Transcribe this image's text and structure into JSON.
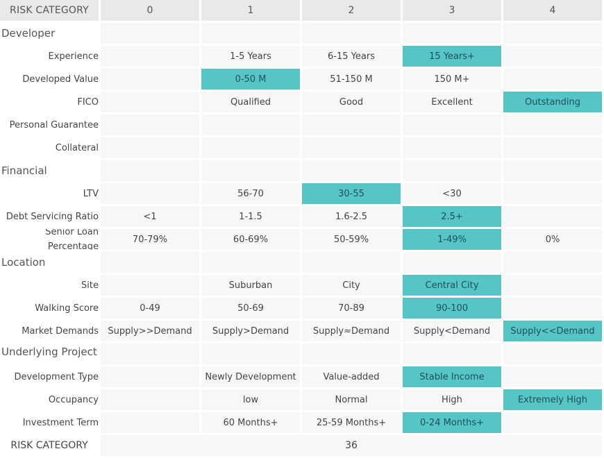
{
  "header": {
    "title": "RISK CATEGORY",
    "levels": [
      "0",
      "1",
      "2",
      "3",
      "4"
    ]
  },
  "sections": [
    {
      "title": "Developer",
      "rows": [
        {
          "label": "Experience",
          "cells": [
            "",
            "1-5 Years",
            "6-15 Years",
            "15 Years+",
            ""
          ],
          "selected": 3
        },
        {
          "label": "Developed Value",
          "cells": [
            "",
            "0-50 M",
            "51-150 M",
            "150 M+",
            ""
          ],
          "selected": 1
        },
        {
          "label": "FICO",
          "cells": [
            "",
            "Qualified",
            "Good",
            "Excellent",
            "Outstanding"
          ],
          "selected": 4
        },
        {
          "label": "Personal Guarantee",
          "cells": [
            "",
            "",
            "",
            "",
            ""
          ],
          "selected": null
        },
        {
          "label": "Collateral",
          "cells": [
            "",
            "",
            "",
            "",
            ""
          ],
          "selected": null
        }
      ]
    },
    {
      "title": "Financial",
      "rows": [
        {
          "label": "LTV",
          "cells": [
            "",
            "56-70",
            "30-55",
            "<30",
            ""
          ],
          "selected": 2
        },
        {
          "label": "Debt Servicing Ratio",
          "cells": [
            "<1",
            "1-1.5",
            "1.6-2.5",
            "2.5+",
            ""
          ],
          "selected": 3
        },
        {
          "label": "Senior Loan Percentage",
          "cells": [
            "70-79%",
            "60-69%",
            "50-59%",
            "1-49%",
            "0%"
          ],
          "selected": 3
        }
      ]
    },
    {
      "title": "Location",
      "rows": [
        {
          "label": "Site",
          "cells": [
            "",
            "Suburban",
            "City",
            "Central City",
            ""
          ],
          "selected": 3
        },
        {
          "label": "Walking Score",
          "cells": [
            "0-49",
            "50-69",
            "70-89",
            "90-100",
            ""
          ],
          "selected": 3
        },
        {
          "label": "Market Demands",
          "cells": [
            "Supply>>Demand",
            "Supply>Demand",
            "Supply≈Demand",
            "Supply<Demand",
            "Supply<<Demand"
          ],
          "selected": 4
        }
      ]
    },
    {
      "title": "Underlying Project",
      "rows": [
        {
          "label": "Development Type",
          "cells": [
            "",
            "Newly Development",
            "Value-added",
            "Stable Income",
            ""
          ],
          "selected": 3
        },
        {
          "label": "Occupancy",
          "cells": [
            "",
            "low",
            "Normal",
            "High",
            "Extremely High"
          ],
          "selected": 4
        },
        {
          "label": "Investment Term",
          "cells": [
            "",
            "60 Months+",
            "25-59 Months+",
            "0-24 Months+",
            ""
          ],
          "selected": 3
        }
      ]
    }
  ],
  "footer": {
    "label": "RISK CATEGORY",
    "total": "36"
  },
  "colors": {
    "highlight": "#56c5c6",
    "header_bg": "#e9e9e9",
    "cell_bg": "#f7f7f7"
  }
}
